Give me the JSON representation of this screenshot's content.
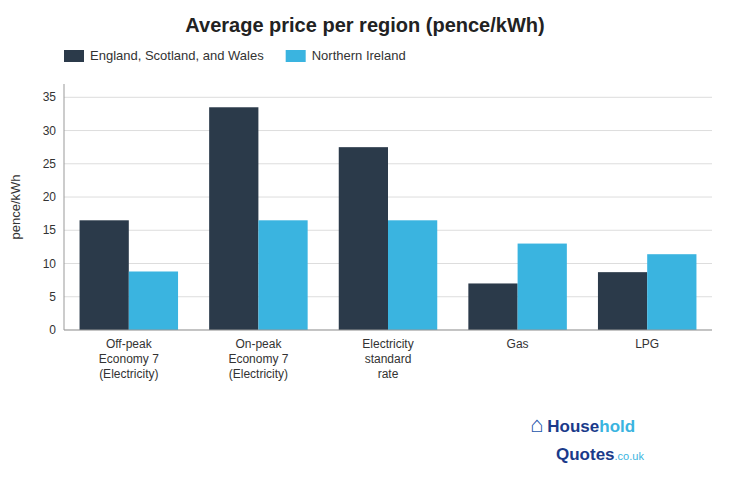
{
  "chart_data": {
    "type": "bar",
    "title": "Average price per region (pence/kWh)",
    "y_label": "pence/kWh",
    "categories": [
      "Off-peak\nEconomy 7\n(Electricity)",
      "On-peak\nEconomy 7\n(Electricity)",
      "Electricity\nstandard\nrate",
      "Gas",
      "LPG"
    ],
    "series": [
      {
        "name": "England, Scotland, and Wales",
        "color": "#2b3a4a",
        "values": [
          16.5,
          33.5,
          27.5,
          7.0,
          8.7
        ]
      },
      {
        "name": "Northern Ireland",
        "color": "#3ab4e0",
        "values": [
          8.8,
          16.5,
          16.5,
          13.0,
          11.4
        ]
      }
    ],
    "ylim": [
      0,
      37
    ],
    "yticks": [
      0,
      5,
      10,
      15,
      20,
      25,
      30,
      35
    ],
    "grid": true,
    "legend": "upper left",
    "annotations": [
      "⌂",
      "House",
      "hold",
      "Quotes",
      ".co.uk"
    ]
  }
}
